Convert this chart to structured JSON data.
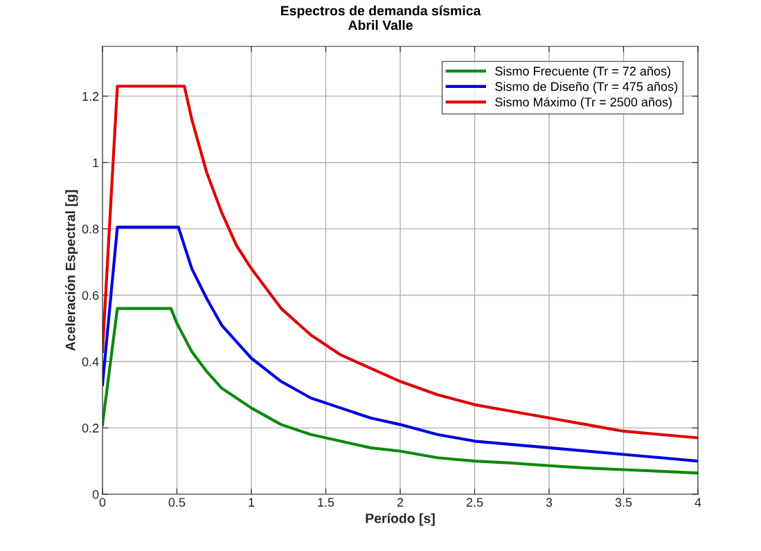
{
  "chart_data": {
    "type": "line",
    "title": "Espectros de demanda sísmica",
    "subtitle": "Abril Valle",
    "xlabel": "Período [s]",
    "ylabel": "Aceleración Espectral [g]",
    "xlim": [
      0,
      4
    ],
    "xticks": [
      0,
      0.5,
      1,
      1.5,
      2,
      2.5,
      3,
      3.5,
      4
    ],
    "ylim": [
      0,
      1.35
    ],
    "yticks": [
      0,
      0.2,
      0.4,
      0.6,
      0.8,
      1,
      1.2
    ],
    "grid": true,
    "legend": "top right",
    "marker": "none",
    "line_style": "solid",
    "series": [
      {
        "name": "Sismo Frecuente (Tr = 72 años)",
        "color": "#0b8a0b",
        "x": [
          0,
          0.1,
          0.46,
          0.5,
          0.6,
          0.7,
          0.8,
          0.9,
          1.0,
          1.2,
          1.4,
          1.6,
          1.8,
          2.0,
          2.25,
          2.5,
          2.75,
          3.0,
          3.25,
          3.5,
          3.75,
          4.0
        ],
        "values": [
          0.21,
          0.56,
          0.56,
          0.515,
          0.43,
          0.37,
          0.32,
          0.29,
          0.26,
          0.21,
          0.18,
          0.16,
          0.14,
          0.13,
          0.11,
          0.1,
          0.094,
          0.086,
          0.079,
          0.074,
          0.069,
          0.064
        ]
      },
      {
        "name": "Sismo de Diseño (Tr = 475 años)",
        "color": "#0000e0",
        "x": [
          0,
          0.1,
          0.51,
          0.6,
          0.7,
          0.8,
          0.9,
          1.0,
          1.2,
          1.4,
          1.6,
          1.8,
          2.0,
          2.25,
          2.5,
          2.75,
          3.0,
          3.25,
          3.5,
          3.75,
          4.0
        ],
        "values": [
          0.33,
          0.805,
          0.805,
          0.68,
          0.59,
          0.51,
          0.46,
          0.41,
          0.34,
          0.29,
          0.26,
          0.23,
          0.21,
          0.18,
          0.16,
          0.15,
          0.14,
          0.13,
          0.12,
          0.11,
          0.1
        ]
      },
      {
        "name": "Sismo Máximo (Tr = 2500 años)",
        "color": "#e00000",
        "x": [
          0,
          0.1,
          0.55,
          0.6,
          0.7,
          0.8,
          0.9,
          1.0,
          1.2,
          1.4,
          1.6,
          1.8,
          2.0,
          2.25,
          2.5,
          2.75,
          3.0,
          3.25,
          3.5,
          3.75,
          4.0
        ],
        "values": [
          0.43,
          1.23,
          1.23,
          1.13,
          0.97,
          0.85,
          0.75,
          0.68,
          0.56,
          0.48,
          0.42,
          0.38,
          0.34,
          0.3,
          0.27,
          0.25,
          0.23,
          0.21,
          0.19,
          0.18,
          0.17
        ]
      }
    ]
  }
}
